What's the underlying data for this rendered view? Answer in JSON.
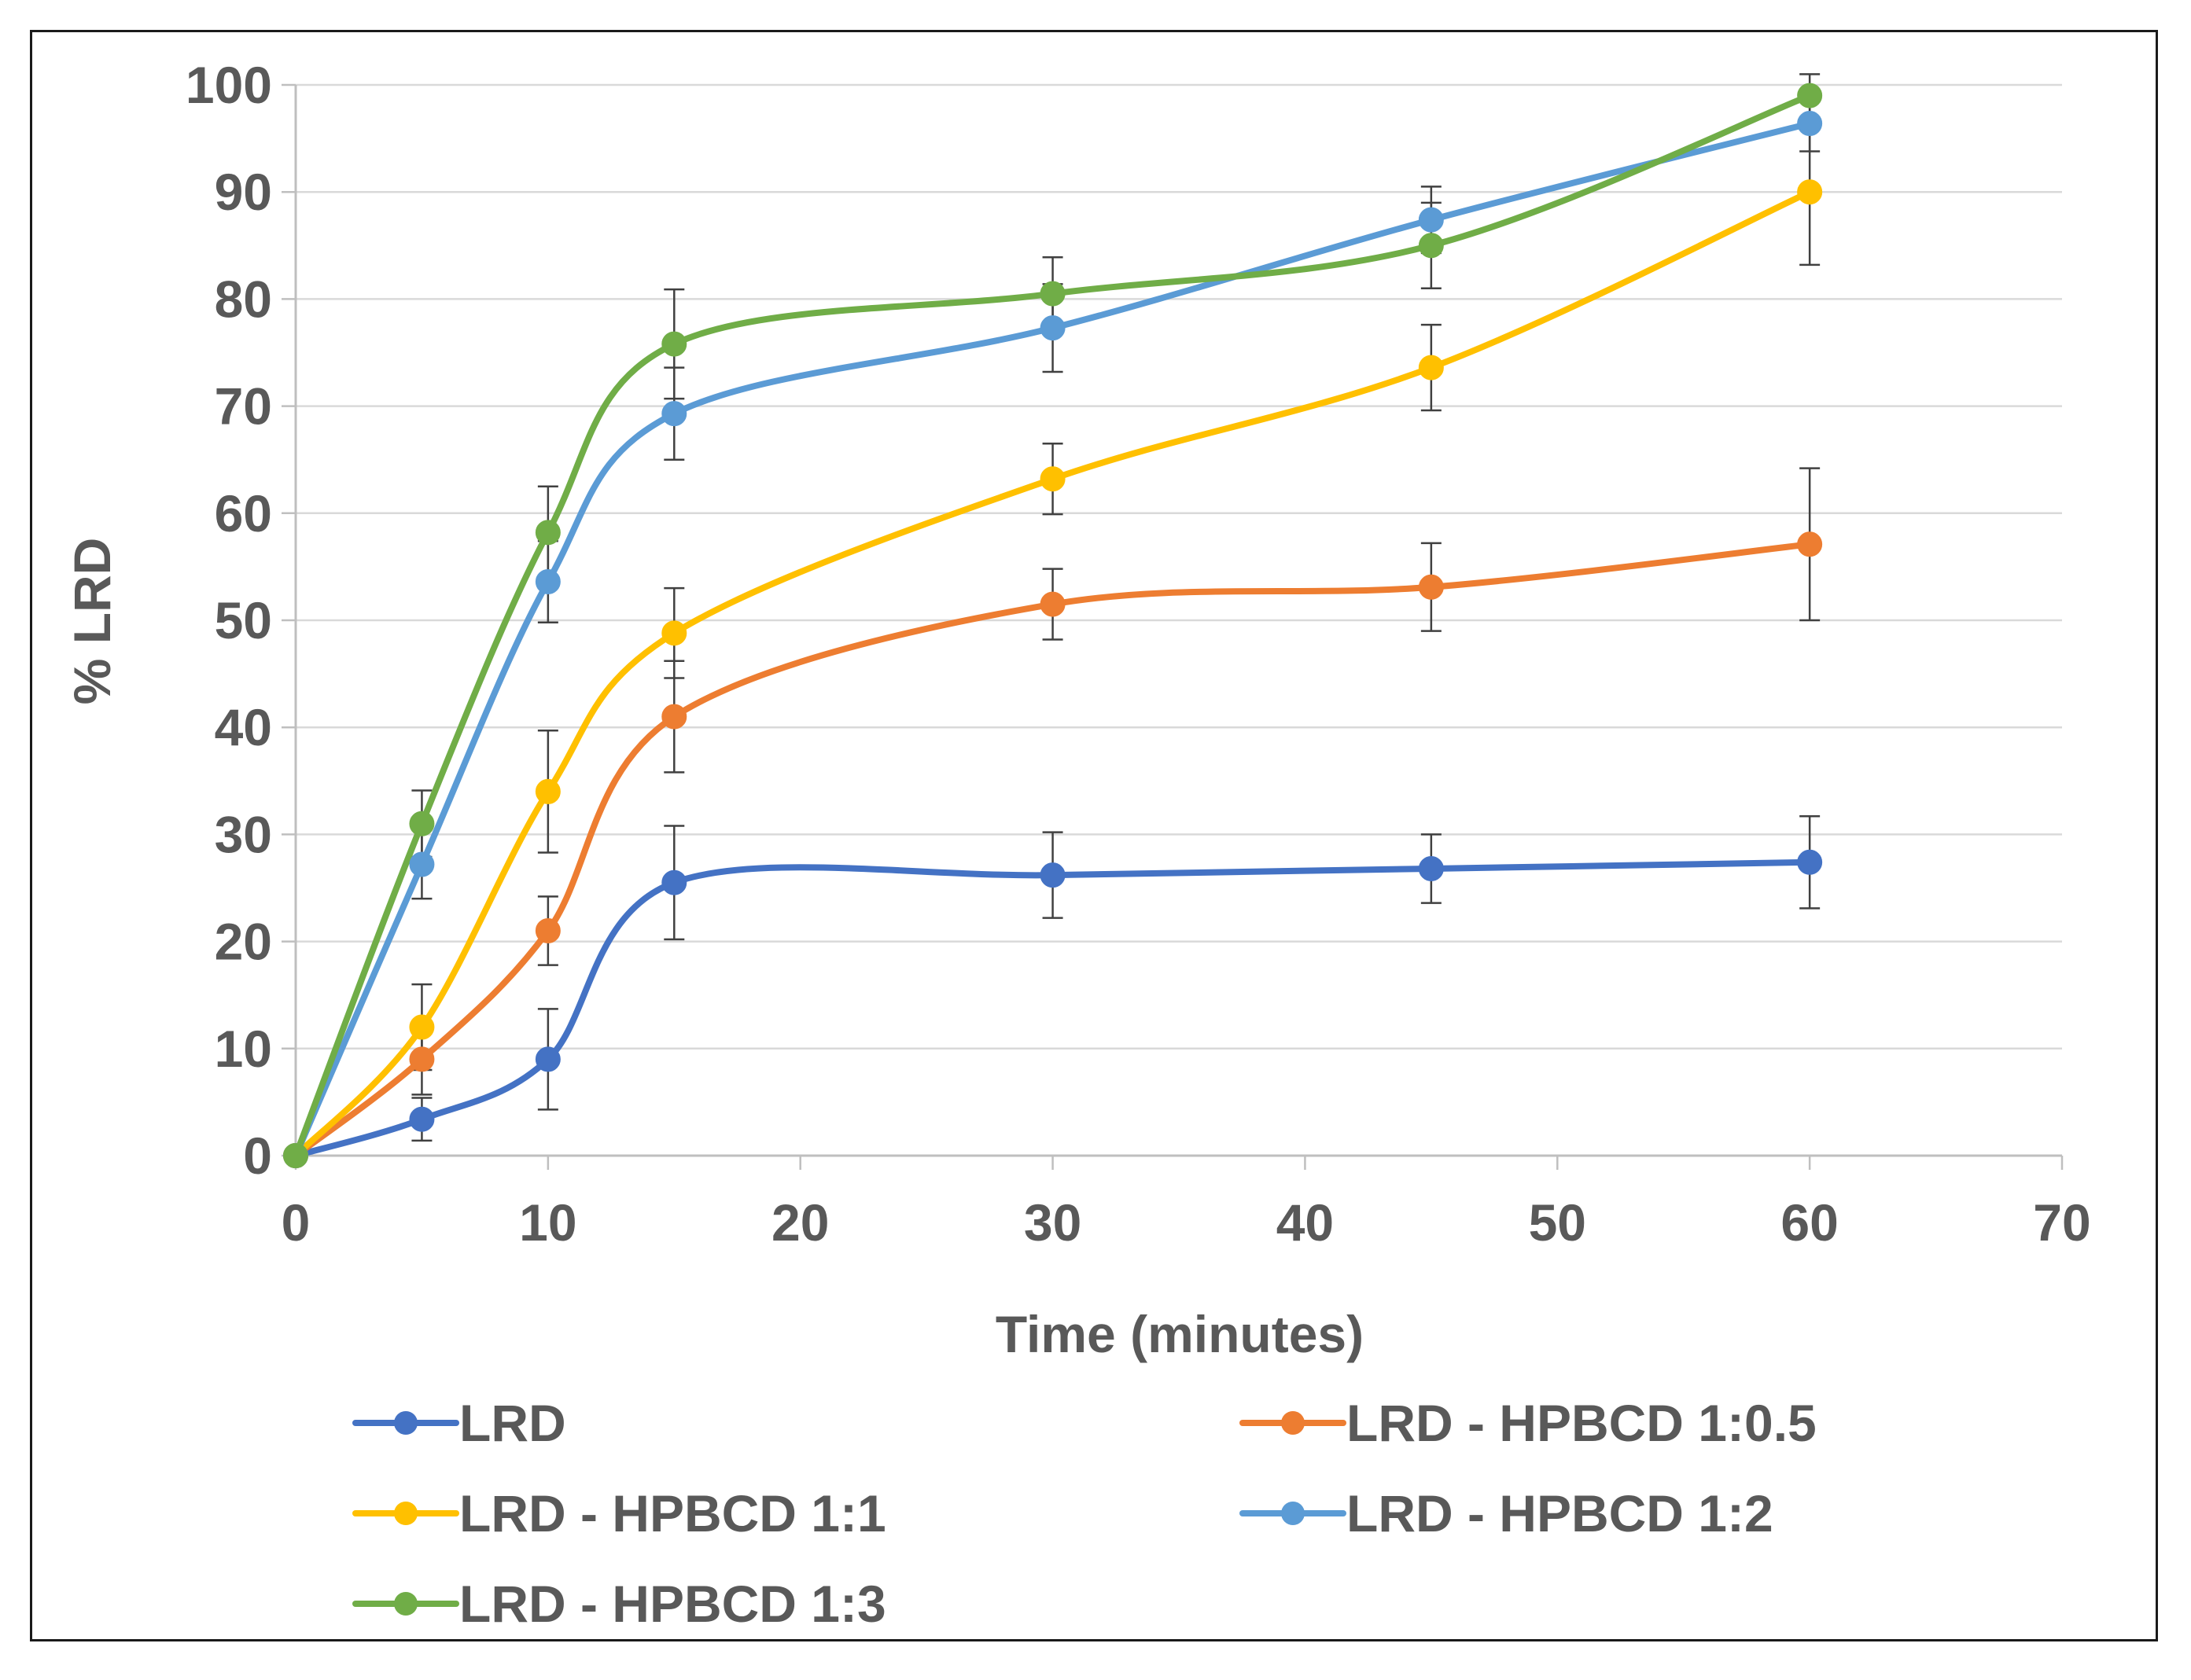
{
  "chart_data": {
    "type": "line",
    "title": "",
    "xlabel": "Time (minutes)",
    "ylabel": "% LRD",
    "xlim": [
      0,
      70
    ],
    "ylim": [
      0,
      100
    ],
    "x_ticks": [
      0,
      10,
      20,
      30,
      40,
      50,
      60,
      70
    ],
    "y_ticks": [
      0,
      10,
      20,
      30,
      40,
      50,
      60,
      70,
      80,
      90,
      100
    ],
    "grid": "horizontal",
    "legend_position": "bottom",
    "x": [
      0,
      5,
      10,
      15,
      30,
      45,
      60
    ],
    "series": [
      {
        "name": "LRD",
        "color": "#4472C4",
        "values": [
          0,
          3.4,
          9.0,
          25.5,
          26.2,
          26.8,
          27.4
        ],
        "error": [
          0,
          2.0,
          4.7,
          5.3,
          4.0,
          3.2,
          4.3
        ]
      },
      {
        "name": "LRD - HPBCD 1:0.5",
        "color": "#ED7D31",
        "values": [
          0,
          9.0,
          21.0,
          41.0,
          51.5,
          53.1,
          57.1
        ],
        "error": [
          0,
          3.3,
          3.2,
          5.2,
          3.3,
          4.1,
          7.1
        ]
      },
      {
        "name": "LRD - HPBCD 1:1",
        "color": "#FFC000",
        "values": [
          0,
          12.0,
          34.0,
          48.8,
          63.2,
          73.6,
          90.0
        ],
        "error": [
          0,
          4.0,
          5.7,
          4.2,
          3.3,
          4.0,
          6.8
        ]
      },
      {
        "name": "LRD - HPBCD 1:2",
        "color": "#5B9BD5",
        "values": [
          0,
          27.2,
          53.6,
          69.3,
          77.3,
          87.4,
          96.4
        ],
        "error": [
          0,
          3.2,
          3.8,
          4.3,
          4.1,
          3.1,
          2.6
        ]
      },
      {
        "name": "LRD - HPBCD 1:3",
        "color": "#70AD47",
        "values": [
          0,
          31.0,
          58.2,
          75.8,
          80.5,
          85.0,
          99.0
        ],
        "error": [
          0,
          3.1,
          4.3,
          5.1,
          3.4,
          4.0,
          2.0
        ]
      }
    ]
  }
}
